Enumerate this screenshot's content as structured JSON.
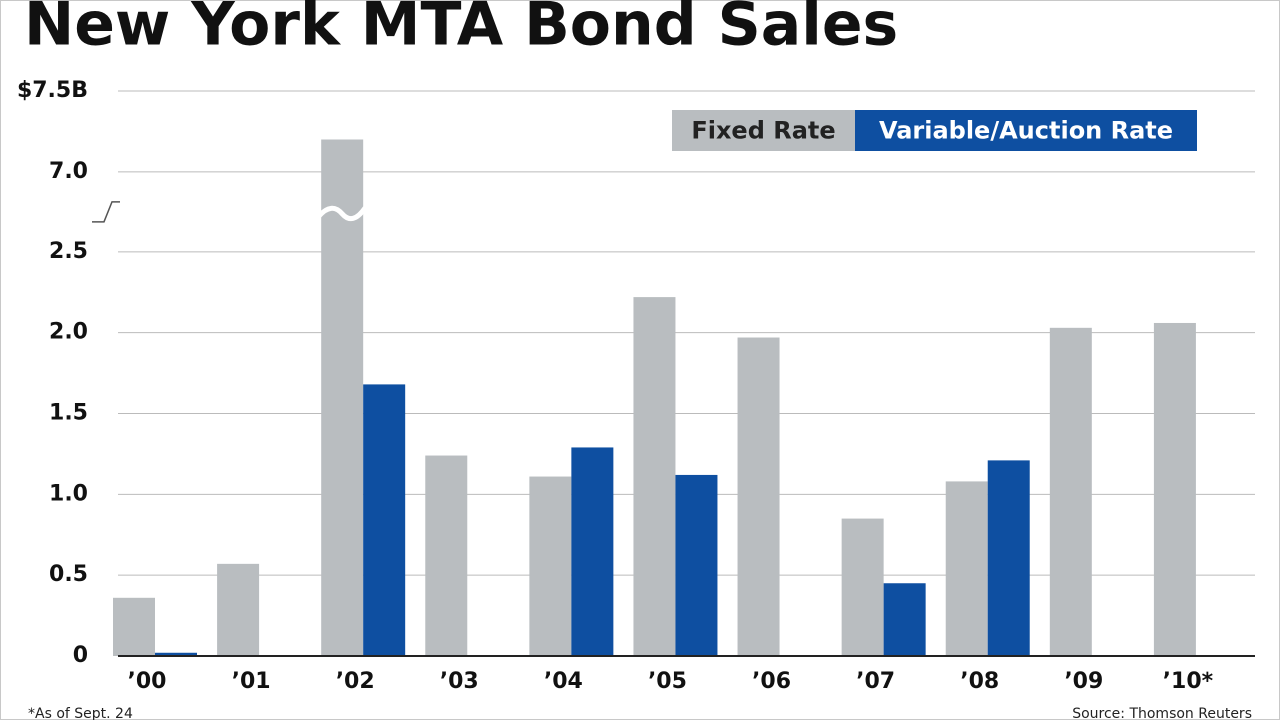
{
  "chart_data": {
    "type": "bar",
    "title": "New York MTA Bond Sales",
    "footnote": "*As of Sept. 24",
    "source": "Source: Thomson Reuters",
    "categories": [
      "’00",
      "’01",
      "’02",
      "’03",
      "’04",
      "’05",
      "’06",
      "’07",
      "’08",
      "’09",
      "’10*"
    ],
    "series": [
      {
        "name": "Fixed Rate",
        "color": "#b9bdc0",
        "values": [
          0.36,
          0.57,
          7.2,
          1.24,
          1.11,
          2.22,
          1.97,
          0.85,
          1.08,
          2.03,
          2.06
        ]
      },
      {
        "name": "Variable/Auction Rate",
        "color": "#0e4fa1",
        "values": [
          0.02,
          null,
          1.68,
          null,
          1.29,
          1.12,
          null,
          0.45,
          1.21,
          null,
          null
        ]
      }
    ],
    "ylim": [
      0,
      7.5
    ],
    "yticks": [
      0,
      0.5,
      {
        "value": 1,
        "label": "1.0"
      },
      1.5,
      {
        "value": 2,
        "label": "2.0"
      },
      2.5,
      {
        "value": 7,
        "label": "7.0"
      },
      {
        "value": 7.5,
        "label": "$7.5B"
      }
    ],
    "broken_axis": true,
    "grid": true,
    "legend": "top-right"
  }
}
